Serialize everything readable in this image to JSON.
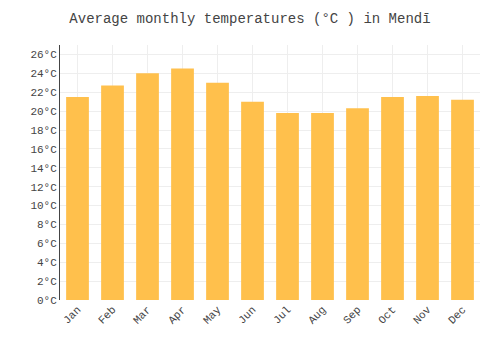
{
  "chart_data": {
    "type": "bar",
    "title": "Average monthly temperatures (°C ) in Mendī",
    "categories": [
      "Jan",
      "Feb",
      "Mar",
      "Apr",
      "May",
      "Jun",
      "Jul",
      "Aug",
      "Sep",
      "Oct",
      "Nov",
      "Dec"
    ],
    "values": [
      21.5,
      22.7,
      24.0,
      24.5,
      23.0,
      21.0,
      19.8,
      19.8,
      20.3,
      21.5,
      21.6,
      21.2
    ],
    "color": "#FFC04C",
    "ylim": [
      0,
      27
    ],
    "yticks": [
      {
        "value": 0,
        "label": "0°C"
      },
      {
        "value": 2,
        "label": "2°C"
      },
      {
        "value": 4,
        "label": "4°C"
      },
      {
        "value": 6,
        "label": "6°C"
      },
      {
        "value": 8,
        "label": "8°C"
      },
      {
        "value": 10,
        "label": "10°C"
      },
      {
        "value": 12,
        "label": "12°C"
      },
      {
        "value": 14,
        "label": "14°C"
      },
      {
        "value": 16,
        "label": "16°C"
      },
      {
        "value": 18,
        "label": "18°C"
      },
      {
        "value": 20,
        "label": "20°C"
      },
      {
        "value": 22,
        "label": "22°C"
      },
      {
        "value": 24,
        "label": "24°C"
      },
      {
        "value": 26,
        "label": "26°C"
      }
    ],
    "grid": true
  }
}
